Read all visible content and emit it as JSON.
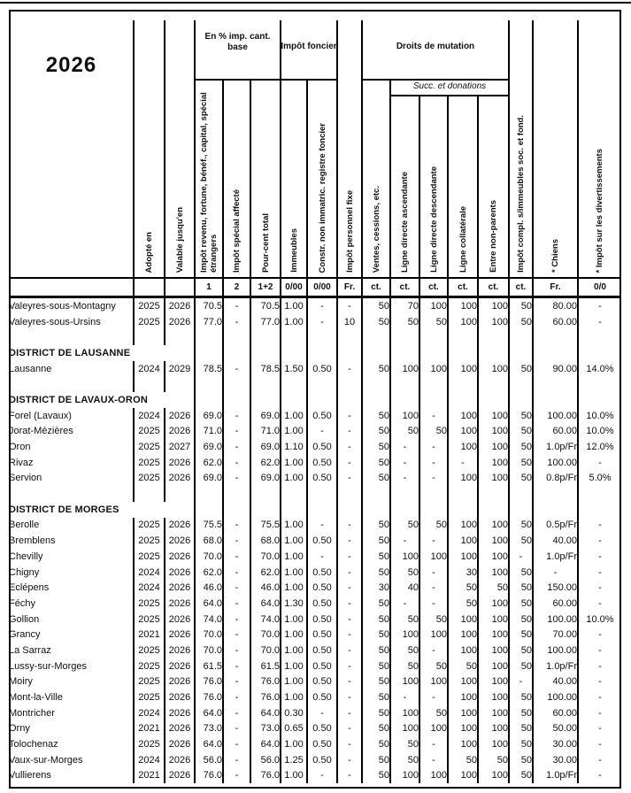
{
  "title_year": "2026",
  "header": {
    "groups": {
      "pct_base": "En % imp. cant. base",
      "foncier": "Impôt foncier",
      "mutation": "Droits de mutation",
      "succ": "Succ. et donations"
    },
    "columns": [
      {
        "id": "adopte",
        "label": "Adopté en",
        "unit": ""
      },
      {
        "id": "valable",
        "label": "Valable jusqu'en",
        "unit": ""
      },
      {
        "id": "c1",
        "label": "Impôt revenu, fortune, bénéf., capital, spécial étrangers",
        "unit": "1"
      },
      {
        "id": "c2",
        "label": "Impôt spécial affecté",
        "unit": "2"
      },
      {
        "id": "c12",
        "label": "Pour-cent total",
        "unit": "1+2"
      },
      {
        "id": "imm",
        "label": "Immeubles",
        "unit": "0/00"
      },
      {
        "id": "constr",
        "label": "Constr. non immatric. registre foncier",
        "unit": "0/00"
      },
      {
        "id": "fixe",
        "label": "Impôt personnel fixe",
        "unit": "Fr."
      },
      {
        "id": "ventes",
        "label": "Ventes, cessions, etc.",
        "unit": "ct."
      },
      {
        "id": "asc",
        "label": "Ligne directe ascendante",
        "unit": "ct."
      },
      {
        "id": "desc",
        "label": "Ligne directe descendante",
        "unit": "ct."
      },
      {
        "id": "collat",
        "label": "Ligne collatérale",
        "unit": "ct."
      },
      {
        "id": "nonpar",
        "label": "Entre non-parents",
        "unit": "ct."
      },
      {
        "id": "compl",
        "label": "Impôt compl. s/immeubles soc. et fond.",
        "unit": "ct."
      },
      {
        "id": "chiens",
        "label": "* Chiens",
        "unit": "Fr."
      },
      {
        "id": "divert",
        "label": "* Impôt sur les divertissements",
        "unit": "0/0"
      }
    ]
  },
  "rows": [
    {
      "type": "commune",
      "name": "Valeyres-sous-Montagny",
      "values": [
        "2025",
        "2026",
        "70.5",
        "-",
        "70.5",
        "1.00",
        "-",
        "-",
        "50",
        "70",
        "100",
        "100",
        "100",
        "50",
        "80.00",
        "-"
      ]
    },
    {
      "type": "commune",
      "name": "Valeyres-sous-Ursins",
      "values": [
        "2025",
        "2026",
        "77.0",
        "-",
        "77.0",
        "1.00",
        "-",
        "10",
        "50",
        "50",
        "50",
        "100",
        "100",
        "50",
        "60.00",
        "-"
      ]
    },
    {
      "type": "blank"
    },
    {
      "type": "district",
      "name": "DISTRICT DE LAUSANNE"
    },
    {
      "type": "commune",
      "name": "Lausanne",
      "values": [
        "2024",
        "2029",
        "78.5",
        "-",
        "78.5",
        "1.50",
        "0.50",
        "-",
        "50",
        "100",
        "100",
        "100",
        "100",
        "50",
        "90.00",
        "14.0%"
      ]
    },
    {
      "type": "blank"
    },
    {
      "type": "district",
      "name": "DISTRICT DE LAVAUX-ORON"
    },
    {
      "type": "commune",
      "name": "Forel (Lavaux)",
      "values": [
        "2024",
        "2026",
        "69.0",
        "-",
        "69.0",
        "1.00",
        "0.50",
        "-",
        "50",
        "100",
        "-",
        "100",
        "100",
        "50",
        "100.00",
        "10.0%"
      ]
    },
    {
      "type": "commune",
      "name": "Jorat-Mézières",
      "values": [
        "2025",
        "2026",
        "71.0",
        "-",
        "71.0",
        "1.00",
        "-",
        "-",
        "50",
        "50",
        "50",
        "100",
        "100",
        "50",
        "60.00",
        "10.0%"
      ]
    },
    {
      "type": "commune",
      "name": "Oron",
      "values": [
        "2025",
        "2027",
        "69.0",
        "-",
        "69.0",
        "1.10",
        "0.50",
        "-",
        "50",
        "-",
        "-",
        "100",
        "100",
        "50",
        "1.0p/Fr",
        "12.0%"
      ]
    },
    {
      "type": "commune",
      "name": "Rivaz",
      "values": [
        "2025",
        "2026",
        "62.0",
        "-",
        "62.0",
        "1.00",
        "0.50",
        "-",
        "50",
        "-",
        "-",
        "-",
        "100",
        "50",
        "100.00",
        "-"
      ]
    },
    {
      "type": "commune",
      "name": "Servion",
      "values": [
        "2025",
        "2026",
        "69.0",
        "-",
        "69.0",
        "1.00",
        "0.50",
        "-",
        "50",
        "-",
        "-",
        "100",
        "100",
        "50",
        "0.8p/Fr",
        "5.0%"
      ]
    },
    {
      "type": "blank"
    },
    {
      "type": "district",
      "name": "DISTRICT DE MORGES"
    },
    {
      "type": "commune",
      "name": "Berolle",
      "values": [
        "2025",
        "2026",
        "75.5",
        "-",
        "75.5",
        "1.00",
        "-",
        "-",
        "50",
        "50",
        "50",
        "100",
        "100",
        "50",
        "0.5p/Fr",
        "-"
      ]
    },
    {
      "type": "commune",
      "name": "Bremblens",
      "values": [
        "2025",
        "2026",
        "68.0",
        "-",
        "68.0",
        "1.00",
        "0.50",
        "-",
        "50",
        "-",
        "-",
        "100",
        "100",
        "50",
        "40.00",
        "-"
      ]
    },
    {
      "type": "commune",
      "name": "Chevilly",
      "values": [
        "2025",
        "2026",
        "70.0",
        "-",
        "70.0",
        "1.00",
        "-",
        "-",
        "50",
        "100",
        "100",
        "100",
        "100",
        "-",
        "1.0p/Fr",
        "-"
      ]
    },
    {
      "type": "commune",
      "name": "Chigny",
      "values": [
        "2024",
        "2026",
        "62.0",
        "-",
        "62.0",
        "1.00",
        "0.50",
        "-",
        "50",
        "50",
        "-",
        "30",
        "100",
        "50",
        "-",
        "-"
      ]
    },
    {
      "type": "commune",
      "name": "Eclépens",
      "values": [
        "2024",
        "2026",
        "46.0",
        "-",
        "46.0",
        "1.00",
        "0.50",
        "-",
        "30",
        "40",
        "-",
        "50",
        "50",
        "50",
        "150.00",
        "-"
      ]
    },
    {
      "type": "commune",
      "name": "Féchy",
      "values": [
        "2025",
        "2026",
        "64.0",
        "-",
        "64.0",
        "1.30",
        "0.50",
        "-",
        "50",
        "-",
        "-",
        "50",
        "100",
        "50",
        "60.00",
        "-"
      ]
    },
    {
      "type": "commune",
      "name": "Gollion",
      "values": [
        "2025",
        "2026",
        "74.0",
        "-",
        "74.0",
        "1.00",
        "0.50",
        "-",
        "50",
        "50",
        "50",
        "100",
        "100",
        "50",
        "100.00",
        "10.0%"
      ]
    },
    {
      "type": "commune",
      "name": "Grancy",
      "values": [
        "2021",
        "2026",
        "70.0",
        "-",
        "70.0",
        "1.00",
        "0.50",
        "-",
        "50",
        "100",
        "100",
        "100",
        "100",
        "50",
        "70.00",
        "-"
      ]
    },
    {
      "type": "commune",
      "name": "La Sarraz",
      "values": [
        "2025",
        "2026",
        "70.0",
        "-",
        "70.0",
        "1.00",
        "0.50",
        "-",
        "50",
        "50",
        "-",
        "100",
        "100",
        "50",
        "100.00",
        "-"
      ]
    },
    {
      "type": "commune",
      "name": "Lussy-sur-Morges",
      "values": [
        "2025",
        "2026",
        "61.5",
        "-",
        "61.5",
        "1.00",
        "0.50",
        "-",
        "50",
        "50",
        "50",
        "50",
        "100",
        "50",
        "1.0p/Fr",
        "-"
      ]
    },
    {
      "type": "commune",
      "name": "Moiry",
      "values": [
        "2025",
        "2026",
        "76.0",
        "-",
        "76.0",
        "1.00",
        "0.50",
        "-",
        "50",
        "100",
        "100",
        "100",
        "100",
        "-",
        "40.00",
        "-"
      ]
    },
    {
      "type": "commune",
      "name": "Mont-la-Ville",
      "values": [
        "2025",
        "2026",
        "76.0",
        "-",
        "76.0",
        "1.00",
        "0.50",
        "-",
        "50",
        "-",
        "-",
        "100",
        "100",
        "50",
        "100.00",
        "-"
      ]
    },
    {
      "type": "commune",
      "name": "Montricher",
      "values": [
        "2024",
        "2026",
        "64.0",
        "-",
        "64.0",
        "0.30",
        "-",
        "-",
        "50",
        "100",
        "50",
        "100",
        "100",
        "50",
        "60.00",
        "-"
      ]
    },
    {
      "type": "commune",
      "name": "Orny",
      "values": [
        "2021",
        "2026",
        "73.0",
        "-",
        "73.0",
        "0.65",
        "0.50",
        "-",
        "50",
        "100",
        "100",
        "100",
        "100",
        "50",
        "50.00",
        "-"
      ]
    },
    {
      "type": "commune",
      "name": "Tolochenaz",
      "values": [
        "2025",
        "2026",
        "64.0",
        "-",
        "64.0",
        "1.00",
        "0.50",
        "-",
        "50",
        "50",
        "-",
        "100",
        "100",
        "50",
        "30.00",
        "-"
      ]
    },
    {
      "type": "commune",
      "name": "Vaux-sur-Morges",
      "values": [
        "2024",
        "2026",
        "56.0",
        "-",
        "56.0",
        "1.25",
        "0.50",
        "-",
        "50",
        "50",
        "-",
        "50",
        "50",
        "50",
        "30.00",
        "-"
      ]
    },
    {
      "type": "commune",
      "name": "Vullierens",
      "values": [
        "2021",
        "2026",
        "76.0",
        "-",
        "76.0",
        "1.00",
        "-",
        "-",
        "50",
        "100",
        "100",
        "100",
        "100",
        "50",
        "1.0p/Fr",
        "-"
      ]
    }
  ]
}
